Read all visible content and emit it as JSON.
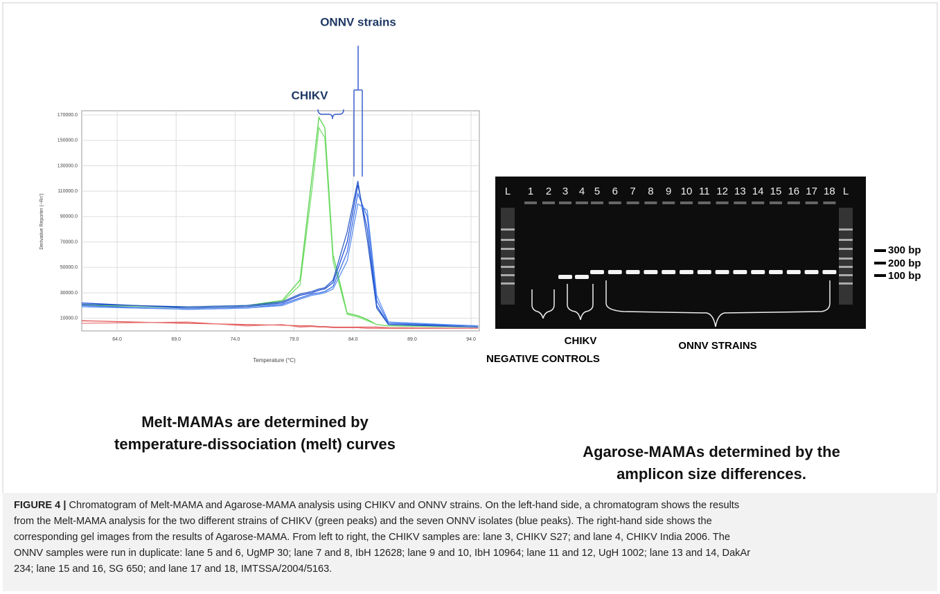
{
  "chart_data": {
    "type": "line",
    "annotations": [
      "ONNV strains",
      "CHIKV"
    ],
    "x_label": "Temperature (°C)",
    "y_label": "Derivative Reporter (−Rn')",
    "xlim": [
      61,
      94.7
    ],
    "ylim": [
      0,
      173300
    ],
    "xticks": [
      {
        "value": 64,
        "label": "64.0"
      },
      {
        "value": 69,
        "label": "69.0"
      },
      {
        "value": 74,
        "label": "74.0"
      },
      {
        "value": 79,
        "label": "79.0"
      },
      {
        "value": 84,
        "label": "84.0"
      },
      {
        "value": 89,
        "label": "89.0"
      },
      {
        "value": 94,
        "label": "94.0"
      }
    ],
    "yticks": [
      {
        "value": 10000,
        "label": "10000.0"
      },
      {
        "value": 30000,
        "label": "30000.0"
      },
      {
        "value": 50000,
        "label": "50000.0"
      },
      {
        "value": 70000,
        "label": "70000.0"
      },
      {
        "value": 90000,
        "label": "90000.0"
      },
      {
        "value": 110000,
        "label": "110000.0"
      },
      {
        "value": 130000,
        "label": "130000.0"
      },
      {
        "value": 150000,
        "label": "150000.0"
      },
      {
        "value": 170000,
        "label": "170000.0"
      }
    ],
    "grid": true,
    "x": [
      61,
      70,
      75,
      78,
      79.5,
      80.5,
      81.1,
      81.6,
      82.3,
      83.5,
      84.4,
      85.2,
      86,
      87,
      94.6
    ],
    "series": [
      {
        "color": "#55d24a",
        "values": [
          20000,
          19000,
          20000,
          24000,
          40000,
          120000,
          168000,
          160000,
          60000,
          14000,
          12000,
          9000,
          5000,
          4000,
          3000
        ]
      },
      {
        "color": "#7be070",
        "values": [
          21000,
          18000,
          19000,
          23000,
          36000,
          110000,
          160000,
          152000,
          55000,
          13000,
          11000,
          8000,
          5000,
          4000,
          3000
        ]
      },
      {
        "color": "#1f4fd6",
        "values": [
          22000,
          18000,
          19000,
          22000,
          28000,
          30000,
          32000,
          33000,
          38000,
          70000,
          115000,
          80000,
          20000,
          5000,
          4000
        ]
      },
      {
        "color": "#3a6ee8",
        "values": [
          20000,
          17000,
          18000,
          21000,
          26000,
          29000,
          30000,
          31000,
          35000,
          62000,
          108000,
          90000,
          24000,
          6000,
          4000
        ]
      },
      {
        "color": "#2b5cc2",
        "values": [
          21000,
          19000,
          20000,
          23000,
          29000,
          31000,
          33000,
          34000,
          40000,
          78000,
          118000,
          72000,
          18000,
          5000,
          3000
        ]
      },
      {
        "color": "#5a8ff0",
        "values": [
          19000,
          17000,
          18000,
          20000,
          25000,
          28000,
          29000,
          30000,
          33000,
          55000,
          100000,
          95000,
          28000,
          7000,
          4000
        ]
      },
      {
        "color": "#e05050",
        "values": [
          8000,
          6000,
          5000,
          4500,
          4000,
          4000,
          3500,
          3500,
          3000,
          3000,
          3000,
          3000,
          3000,
          2500,
          2000
        ]
      },
      {
        "color": "#e87878",
        "values": [
          6000,
          7000,
          4000,
          5000,
          3000,
          3500,
          3000,
          3000,
          2500,
          2500,
          2500,
          2000,
          2000,
          2000,
          2000
        ]
      }
    ]
  },
  "gel": {
    "lanes": [
      "L",
      "1",
      "2",
      "3",
      "4",
      "5",
      "6",
      "7",
      "8",
      "9",
      "10",
      "11",
      "12",
      "13",
      "14",
      "15",
      "16",
      "17",
      "18",
      "L"
    ],
    "markers": [
      "300 bp",
      "200 bp",
      "100 bp"
    ],
    "groups": [
      "CHIKV",
      "NEGATIVE CONTROLS",
      "ONNV STRAINS"
    ]
  },
  "panel_captions": {
    "left": [
      "Melt-MAMAs are determined by",
      "temperature-dissociation (melt) curves"
    ],
    "right": [
      "Agarose-MAMAs determined by the",
      "amplicon size differences."
    ]
  },
  "caption": {
    "label": "FIGURE 4 |",
    "lines": [
      "Chromatogram of Melt-MAMA and Agarose-MAMA analysis using CHIKV and ONNV strains. On the left-hand side, a chromatogram shows the results",
      "from the Melt-MAMA analysis for the two different strains of CHIKV (green peaks) and the seven ONNV isolates (blue peaks). The right-hand side shows the",
      "corresponding gel images from the results of Agarose-MAMA. From left to right, the CHIKV samples are: lane 3, CHIKV S27; and lane 4, CHIKV India 2006. The",
      "ONNV samples were run in duplicate: lane 5 and 6, UgMP 30; lane 7 and 8, IbH 12628; lane 9 and 10, IbH 10964; lane 11 and 12, UgH 1002; lane 13 and 14, DakAr",
      "234; lane 15 and 16, SG 650; and lane 17 and 18, IMTSSA/2004/5163."
    ]
  }
}
